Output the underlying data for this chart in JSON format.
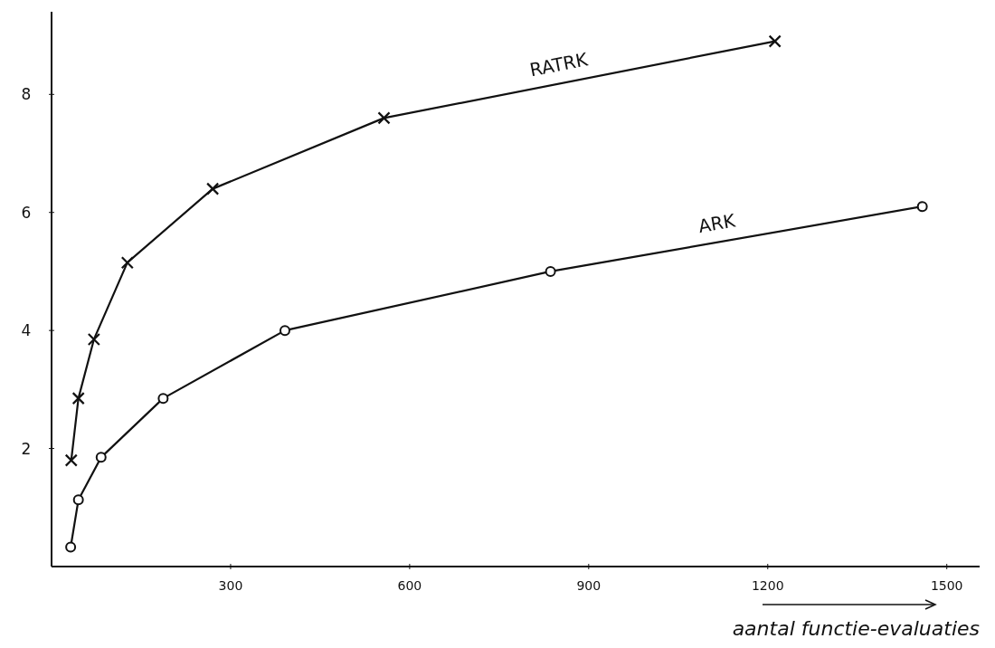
{
  "chart_data": {
    "type": "line",
    "xlabel": "aantal functie-evaluaties",
    "xlim": [
      0,
      1555
    ],
    "ylim": [
      0,
      9.4
    ],
    "xticks": [
      300,
      600,
      900,
      1200,
      1500
    ],
    "yticks": [
      2,
      4,
      6,
      8
    ],
    "series": [
      {
        "name": "RATRK",
        "color": "#111111",
        "marker": "cross",
        "x": [
          33,
          45,
          71,
          127,
          270,
          557,
          1212
        ],
        "values": [
          1.8,
          2.85,
          3.85,
          5.15,
          6.4,
          7.6,
          8.9
        ]
      },
      {
        "name": "ARK",
        "color": "#111111",
        "marker": "circle",
        "x": [
          32,
          45,
          83,
          187,
          391,
          836,
          1459
        ],
        "values": [
          0.33,
          1.13,
          1.85,
          2.85,
          4.0,
          5.0,
          6.1
        ]
      }
    ],
    "grid": false
  }
}
